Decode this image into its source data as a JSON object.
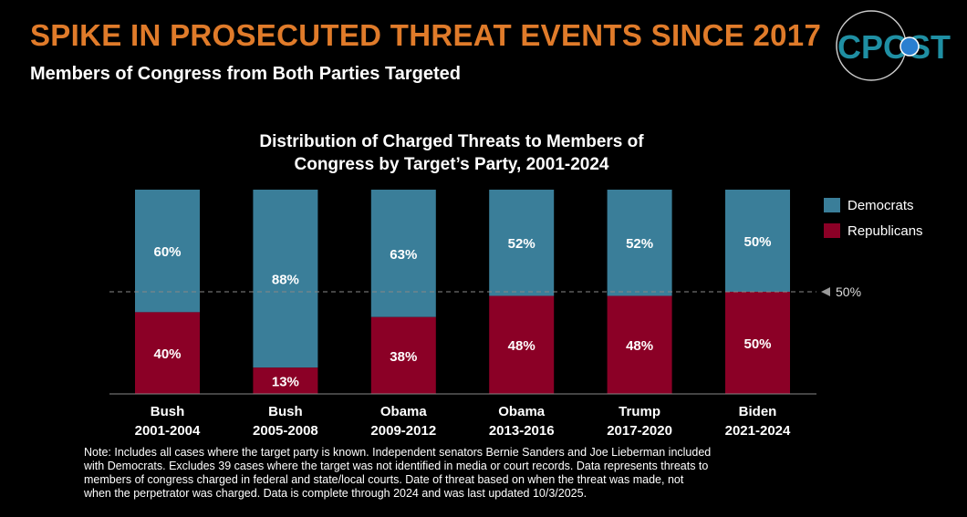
{
  "header": {
    "title": "SPIKE IN PROSECUTED THREAT EVENTS SINCE 2017",
    "subtitle": "Members of Congress from Both Parties Targeted",
    "logo_text": "CPOST"
  },
  "note": "Note: Includes all cases where the target party is known. Independent senators Bernie Sanders and Joe Lieberman included with Democrats. Excludes 39 cases where the target was not identified in media or court records. Data represents threats to members of congress charged in federal and state/local courts. Date of threat based on when the threat was made, not when the perpetrator was charged.  Data is complete through 2024 and was last updated 10/3/2025.",
  "chart_data": {
    "type": "bar",
    "stacked": true,
    "title": "Distribution of Charged Threats to Members of Congress by Target’s Party, 2001-2024",
    "title_lines": [
      "Distribution of Charged Threats to Members of",
      "Congress by Target’s Party, 2001-2024"
    ],
    "categories": [
      [
        "Bush",
        "2001-2004"
      ],
      [
        "Bush",
        "2005-2008"
      ],
      [
        "Obama",
        "2009-2012"
      ],
      [
        "Obama",
        "2013-2016"
      ],
      [
        "Trump",
        "2017-2020"
      ],
      [
        "Biden",
        "2021-2024"
      ]
    ],
    "series": [
      {
        "name": "Republicans",
        "color": "#8b0026",
        "values": [
          40,
          13,
          38,
          48,
          48,
          50
        ],
        "labels": [
          "40%",
          "13%",
          "38%",
          "48%",
          "48%",
          "50%"
        ]
      },
      {
        "name": "Democrats",
        "color": "#3a7e99",
        "values": [
          60,
          88,
          63,
          52,
          52,
          50
        ],
        "labels": [
          "60%",
          "88%",
          "63%",
          "52%",
          "52%",
          "50%"
        ]
      }
    ],
    "reference_line": {
      "value": 50,
      "label": "50%"
    },
    "ylim": [
      0,
      100
    ],
    "legend": {
      "position": "right",
      "entries": [
        "Democrats",
        "Republicans"
      ]
    }
  }
}
